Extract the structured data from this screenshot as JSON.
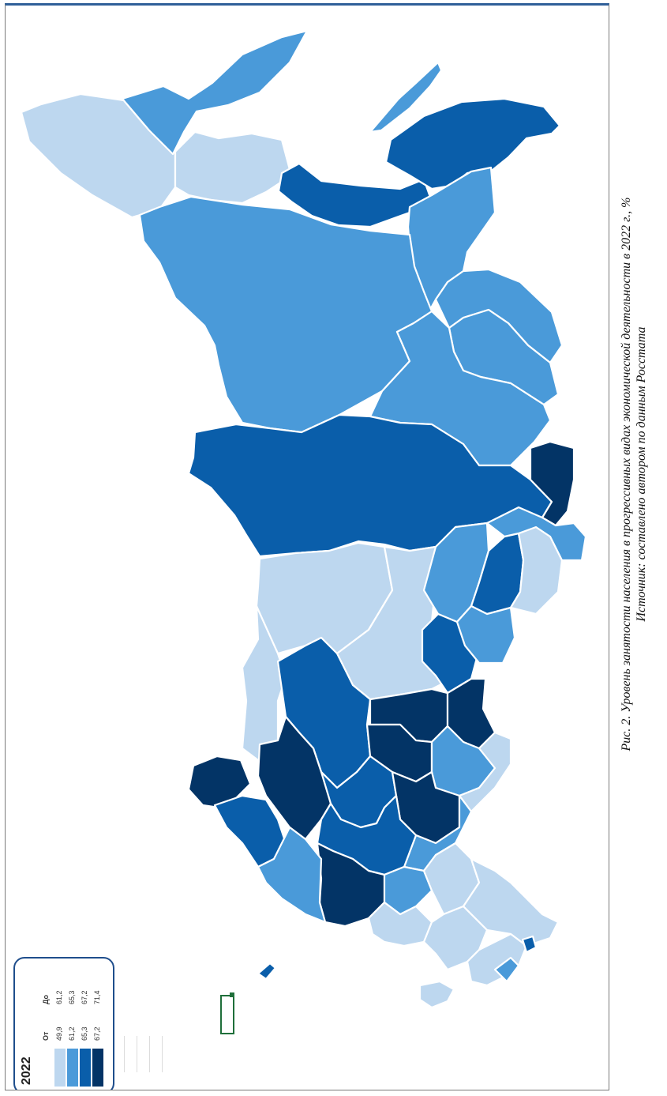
{
  "legend": {
    "title": "2022",
    "col_from": "От",
    "col_to": "До",
    "classes": [
      {
        "from": "49,9",
        "to": "61,2",
        "color": "#bdd7ef"
      },
      {
        "from": "61,2",
        "to": "65,3",
        "color": "#4a9ad9"
      },
      {
        "from": "65,3",
        "to": "67,2",
        "color": "#0a5eaa"
      },
      {
        "from": "67,2",
        "to": "71,4",
        "color": "#033466"
      }
    ]
  },
  "map": {
    "class_colors": [
      "#bdd7ef",
      "#4a9ad9",
      "#0a5eaa",
      "#033466"
    ],
    "border_color": "#ffffff",
    "regions": [
      {
        "name": "region-west-light",
        "cls": 0
      },
      {
        "name": "region-west-island",
        "cls": 1
      },
      {
        "name": "region-northwest-light",
        "cls": 0
      },
      {
        "name": "region-north-coast",
        "cls": 2
      },
      {
        "name": "region-northern-peninsula",
        "cls": 2
      },
      {
        "name": "region-island-northeast",
        "cls": 1
      },
      {
        "name": "region-northeast-band",
        "cls": 1
      },
      {
        "name": "region-large-central",
        "cls": 1
      },
      {
        "name": "region-east-upper-1",
        "cls": 1
      },
      {
        "name": "region-east-upper-2",
        "cls": 1
      },
      {
        "name": "region-east-upper-3",
        "cls": 1
      },
      {
        "name": "region-central-band",
        "cls": 2
      },
      {
        "name": "region-east-dark",
        "cls": 3
      },
      {
        "name": "region-middle-light-west",
        "cls": 0
      },
      {
        "name": "region-middle-light-center",
        "cls": 0
      },
      {
        "name": "region-middle-east-1",
        "cls": 1
      },
      {
        "name": "region-middle-east-2",
        "cls": 2
      },
      {
        "name": "region-middle-east-3",
        "cls": 0
      },
      {
        "name": "region-middle-east-4",
        "cls": 1
      },
      {
        "name": "region-middle-east-5",
        "cls": 2
      },
      {
        "name": "region-middle-east-6",
        "cls": 1
      },
      {
        "name": "region-south-west-light",
        "cls": 0
      },
      {
        "name": "region-south-central",
        "cls": 2
      },
      {
        "name": "region-south-dark-1",
        "cls": 3
      },
      {
        "name": "region-south-dark-2",
        "cls": 3
      },
      {
        "name": "region-south-dark-3",
        "cls": 3
      },
      {
        "name": "region-south-mid-1",
        "cls": 1
      },
      {
        "name": "region-south-light-east",
        "cls": 0
      },
      {
        "name": "region-west-dark-lake",
        "cls": 3
      },
      {
        "name": "region-west-mid",
        "cls": 2
      },
      {
        "name": "region-southwest-dark",
        "cls": 3
      },
      {
        "name": "region-south-mixed-1",
        "cls": 2
      },
      {
        "name": "region-south-mixed-2",
        "cls": 3
      },
      {
        "name": "region-south-mixed-3",
        "cls": 1
      },
      {
        "name": "region-south-mixed-4",
        "cls": 2
      },
      {
        "name": "region-southwest-tip",
        "cls": 3
      },
      {
        "name": "region-southwest-mid",
        "cls": 1
      },
      {
        "name": "region-south-mid-2",
        "cls": 1
      },
      {
        "name": "region-south-light-1",
        "cls": 0
      },
      {
        "name": "region-south-light-2",
        "cls": 0
      },
      {
        "name": "region-south-light-3",
        "cls": 0
      },
      {
        "name": "region-south-light-4",
        "cls": 0
      },
      {
        "name": "region-south-light-5",
        "cls": 0
      },
      {
        "name": "region-south-coast-mid",
        "cls": 1
      },
      {
        "name": "region-exclave-west",
        "cls": 2
      },
      {
        "name": "region-exclave-south",
        "cls": 0
      },
      {
        "name": "region-small-southeast",
        "cls": 2
      }
    ]
  },
  "caption": {
    "line1": "Рис. 2. Уровень занятости населения в прогрессивных видах экономической деятельности в 2022 г., %",
    "line2": "Источник: составлено автором по данным Росстата"
  }
}
